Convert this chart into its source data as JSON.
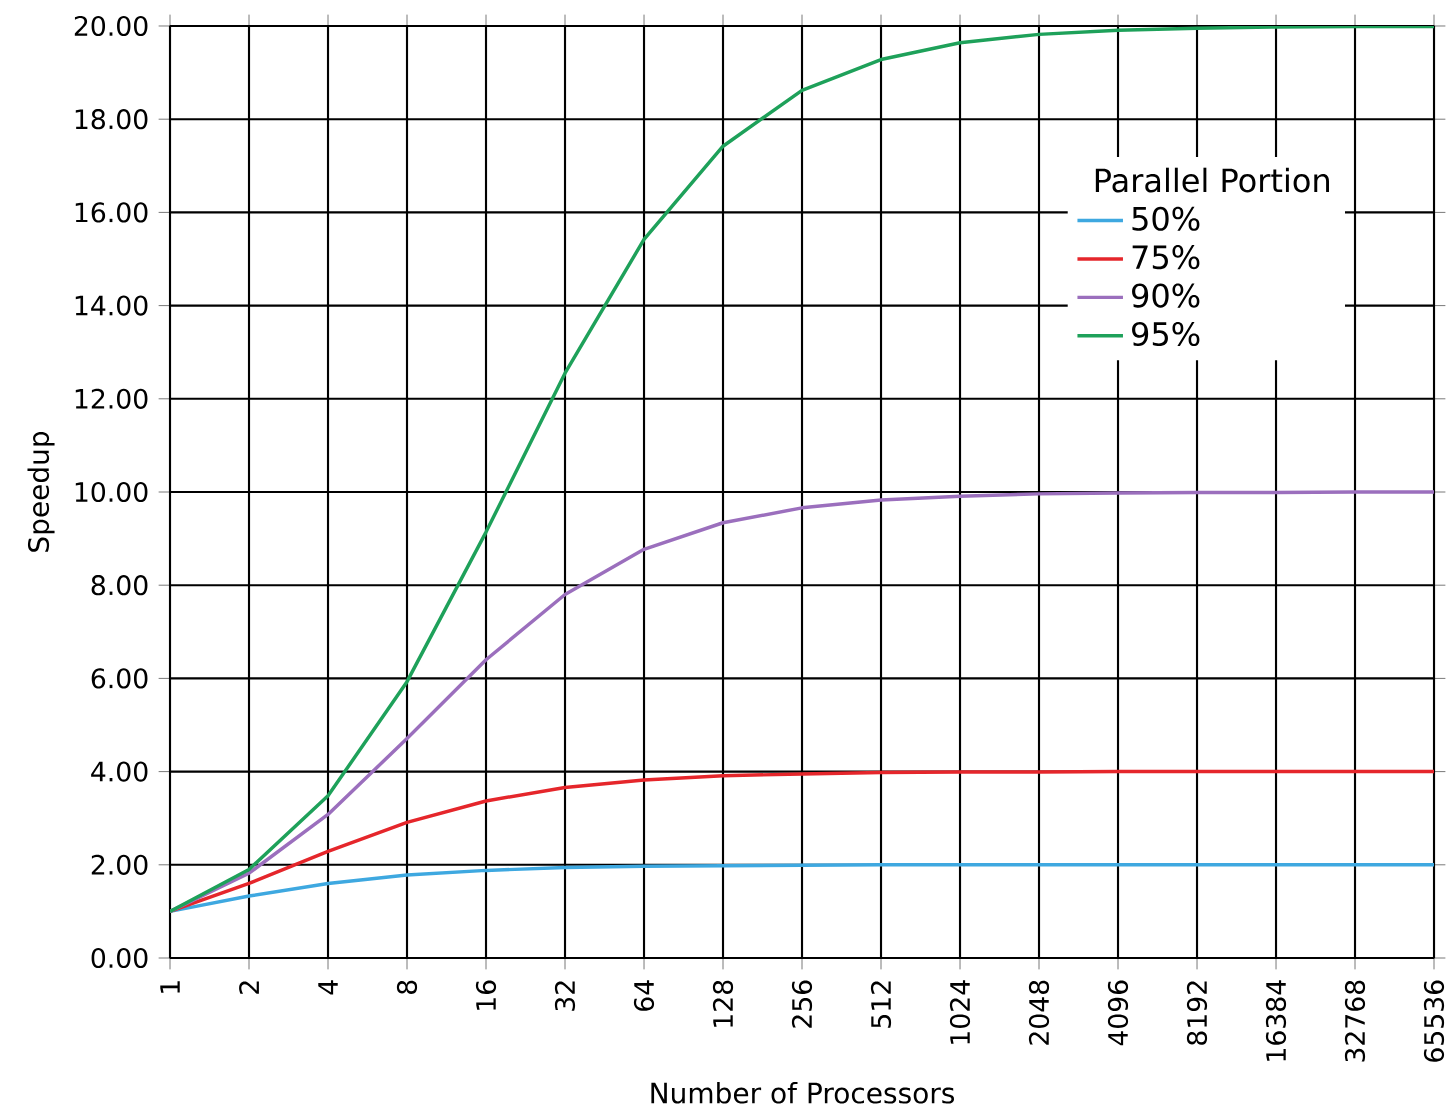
{
  "chart_data": {
    "type": "line",
    "xlabel": "Number of Processors",
    "ylabel": "Speedup",
    "legend_title": "Parallel Portion",
    "legend": "top right",
    "grid": true,
    "marker": "none",
    "line_style": "solid",
    "categories": [
      "1",
      "2",
      "4",
      "8",
      "16",
      "32",
      "64",
      "128",
      "256",
      "512",
      "1024",
      "2048",
      "4096",
      "8192",
      "16384",
      "32768",
      "65536"
    ],
    "ylim": [
      0,
      20
    ],
    "yticks": [
      {
        "value": 0,
        "label": "0.00"
      },
      {
        "value": 2,
        "label": "2.00"
      },
      {
        "value": 4,
        "label": "4.00"
      },
      {
        "value": 6,
        "label": "6.00"
      },
      {
        "value": 8,
        "label": "8.00"
      },
      {
        "value": 10,
        "label": "10.00"
      },
      {
        "value": 12,
        "label": "12.00"
      },
      {
        "value": 14,
        "label": "14.00"
      },
      {
        "value": 16,
        "label": "16.00"
      },
      {
        "value": 18,
        "label": "18.00"
      },
      {
        "value": 20,
        "label": "20.00"
      }
    ],
    "series": [
      {
        "name": "50%",
        "color": "#3ea8e0",
        "values": [
          1,
          1.33,
          1.6,
          1.78,
          1.88,
          1.94,
          1.97,
          1.98,
          1.99,
          2.0,
          2.0,
          2.0,
          2.0,
          2.0,
          2.0,
          2.0,
          2.0
        ]
      },
      {
        "name": "75%",
        "color": "#e5262b",
        "values": [
          1,
          1.6,
          2.29,
          2.91,
          3.37,
          3.66,
          3.82,
          3.91,
          3.95,
          3.98,
          3.99,
          3.99,
          4.0,
          4.0,
          4.0,
          4.0,
          4.0
        ]
      },
      {
        "name": "90%",
        "color": "#9b6fbd",
        "values": [
          1,
          1.82,
          3.08,
          4.71,
          6.4,
          7.8,
          8.77,
          9.34,
          9.66,
          9.83,
          9.91,
          9.96,
          9.98,
          9.99,
          9.99,
          10.0,
          10.0
        ]
      },
      {
        "name": "95%",
        "color": "#1ea15a",
        "values": [
          1,
          1.9,
          3.48,
          5.93,
          9.14,
          12.55,
          15.42,
          17.42,
          18.62,
          19.28,
          19.64,
          19.82,
          19.91,
          19.95,
          19.98,
          19.99,
          19.99
        ]
      }
    ]
  }
}
